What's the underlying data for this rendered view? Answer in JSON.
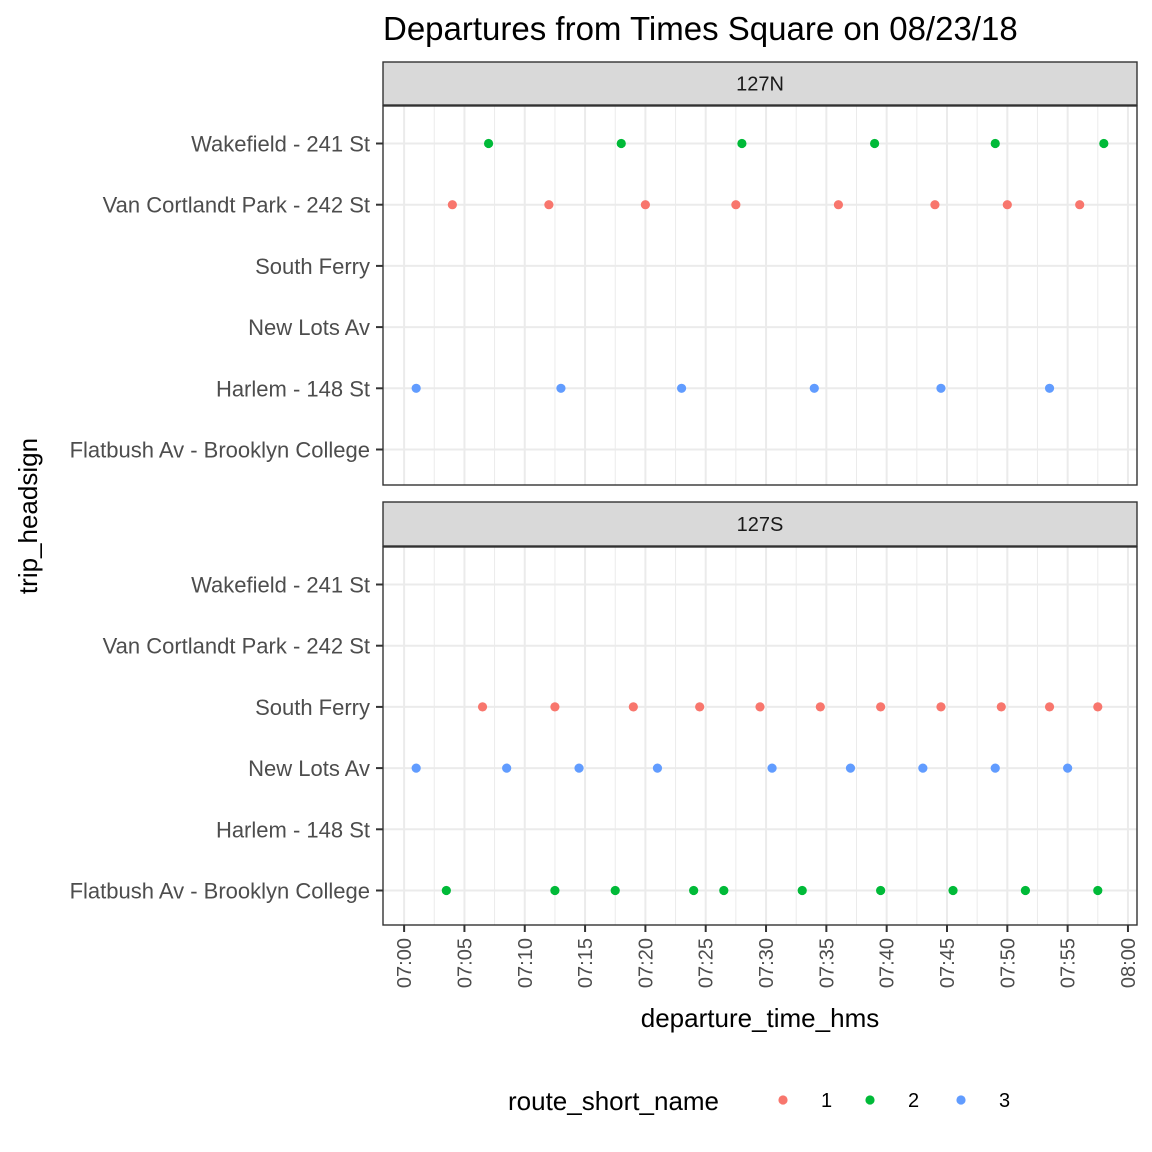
{
  "chart_data": {
    "type": "scatter",
    "title": "Departures from Times Square on 08/23/18",
    "xlabel": "departure_time_hms",
    "ylabel": "trip_headsign",
    "x_ticks": [
      "07:00",
      "07:05",
      "07:10",
      "07:15",
      "07:20",
      "07:25",
      "07:30",
      "07:35",
      "07:40",
      "07:45",
      "07:50",
      "07:55",
      "08:00"
    ],
    "xlim": [
      "06:58:15",
      "08:00:45"
    ],
    "categories": [
      "Wakefield - 241 St",
      "Van Cortlandt Park - 242 St",
      "South Ferry",
      "New Lots Av",
      "Harlem - 148 St",
      "Flatbush Av - Brooklyn College"
    ],
    "legend": {
      "title": "route_short_name",
      "position": "bottom",
      "entries": [
        {
          "label": "1",
          "color": "#F8766D"
        },
        {
          "label": "2",
          "color": "#00BA38"
        },
        {
          "label": "3",
          "color": "#619CFF"
        }
      ]
    },
    "grid": true,
    "panels": [
      {
        "label": "127N",
        "series": [
          {
            "route": "2",
            "headsign": "Wakefield - 241 St",
            "x": [
              "07:07:00",
              "07:18:00",
              "07:28:00",
              "07:39:00",
              "07:49:00",
              "07:58:00"
            ]
          },
          {
            "route": "1",
            "headsign": "Van Cortlandt Park - 242 St",
            "x": [
              "07:04:00",
              "07:12:00",
              "07:20:00",
              "07:27:30",
              "07:36:00",
              "07:44:00",
              "07:50:00",
              "07:56:00"
            ]
          },
          {
            "route": "3",
            "headsign": "Harlem - 148 St",
            "x": [
              "07:01:00",
              "07:13:00",
              "07:23:00",
              "07:34:00",
              "07:44:30",
              "07:53:30"
            ]
          }
        ]
      },
      {
        "label": "127S",
        "series": [
          {
            "route": "1",
            "headsign": "South Ferry",
            "x": [
              "07:06:30",
              "07:12:30",
              "07:19:00",
              "07:24:30",
              "07:29:30",
              "07:34:30",
              "07:39:30",
              "07:44:30",
              "07:49:30",
              "07:53:30",
              "07:57:30"
            ]
          },
          {
            "route": "3",
            "headsign": "New Lots Av",
            "x": [
              "07:01:00",
              "07:08:30",
              "07:14:30",
              "07:21:00",
              "07:30:30",
              "07:37:00",
              "07:43:00",
              "07:49:00",
              "07:55:00"
            ]
          },
          {
            "route": "2",
            "headsign": "Flatbush Av - Brooklyn College",
            "x": [
              "07:03:30",
              "07:12:30",
              "07:17:30",
              "07:24:00",
              "07:26:30",
              "07:33:00",
              "07:39:30",
              "07:45:30",
              "07:51:30",
              "07:57:30"
            ]
          }
        ]
      }
    ]
  }
}
